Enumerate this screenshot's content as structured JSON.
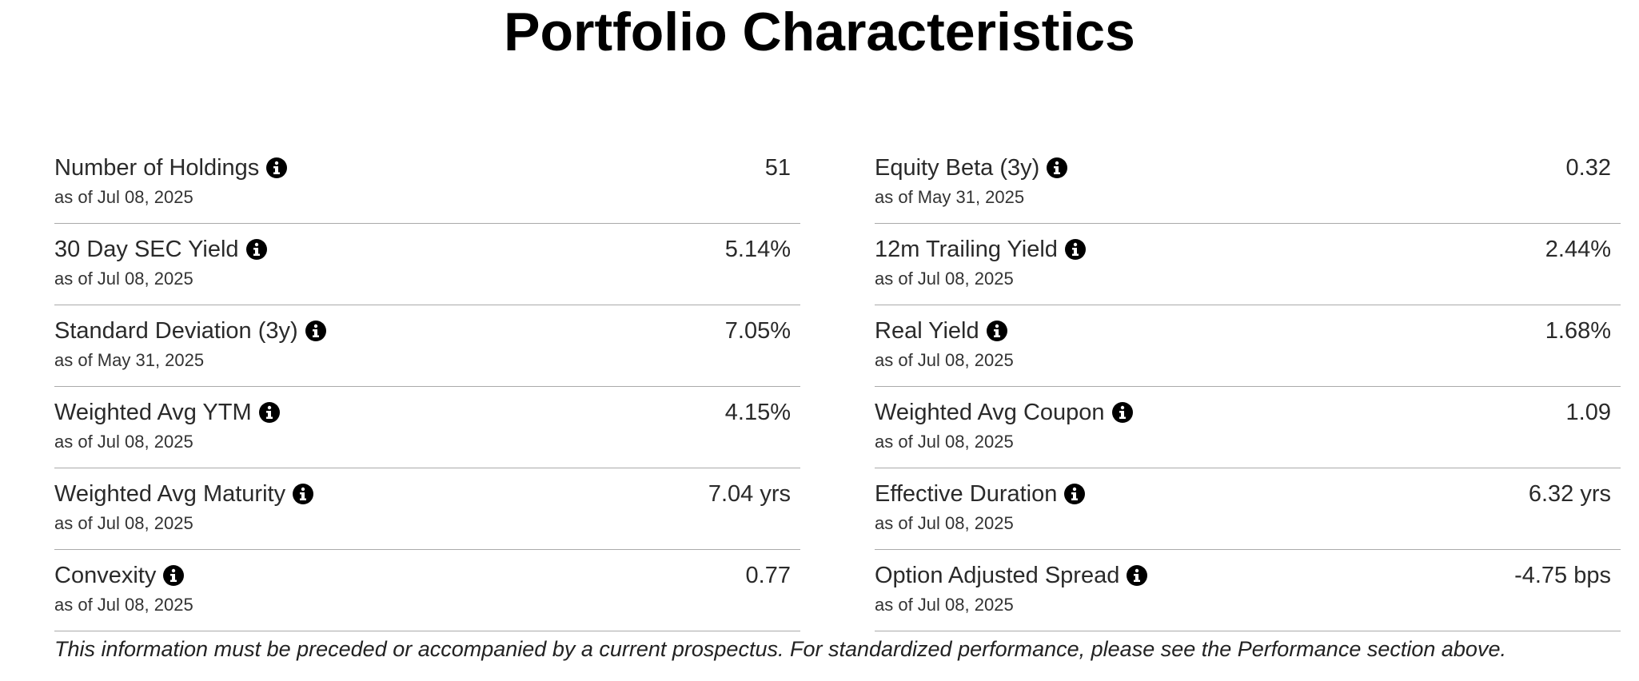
{
  "header": {
    "title": "Portfolio Characteristics"
  },
  "columns": [
    {
      "rows": [
        {
          "label": "Number of Holdings",
          "date": "as of Jul 08, 2025",
          "value": "51"
        },
        {
          "label": "30 Day SEC Yield",
          "date": "as of Jul 08, 2025",
          "value": "5.14%"
        },
        {
          "label": "Standard Deviation (3y)",
          "date": "as of May 31, 2025",
          "value": "7.05%"
        },
        {
          "label": "Weighted Avg YTM",
          "date": "as of Jul 08, 2025",
          "value": "4.15%"
        },
        {
          "label": "Weighted Avg Maturity",
          "date": "as of Jul 08, 2025",
          "value": "7.04 yrs"
        },
        {
          "label": "Convexity",
          "date": "as of Jul 08, 2025",
          "value": "0.77"
        }
      ]
    },
    {
      "rows": [
        {
          "label": "Equity Beta (3y)",
          "date": "as of May 31, 2025",
          "value": "0.32"
        },
        {
          "label": "12m Trailing Yield",
          "date": "as of Jul 08, 2025",
          "value": "2.44%"
        },
        {
          "label": "Real Yield",
          "date": "as of Jul 08, 2025",
          "value": "1.68%"
        },
        {
          "label": "Weighted Avg Coupon",
          "date": "as of Jul 08, 2025",
          "value": "1.09"
        },
        {
          "label": "Effective Duration",
          "date": "as of Jul 08, 2025",
          "value": "6.32 yrs"
        },
        {
          "label": "Option Adjusted Spread",
          "date": "as of Jul 08, 2025",
          "value": "-4.75 bps"
        }
      ]
    }
  ],
  "footer": {
    "note": "This information must be preceded or accompanied by a current prospectus. For standardized performance, please see the Performance section above."
  }
}
